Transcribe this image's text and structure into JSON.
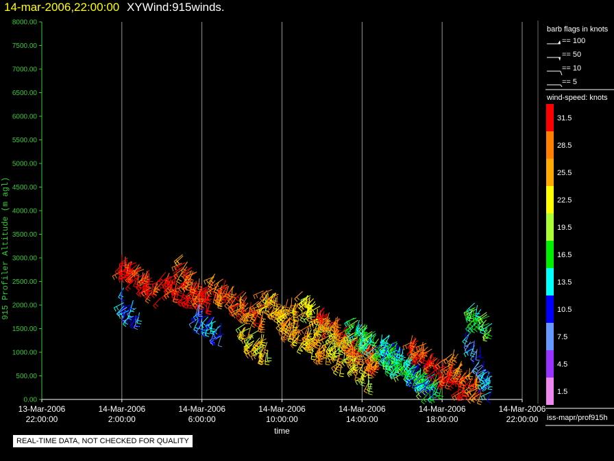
{
  "header": {
    "timestamp": "14-mar-2006,22:00:00",
    "name": "XYWind:915winds."
  },
  "footer": {
    "quality_notice": "REAL-TIME DATA, NOT CHECKED FOR QUALITY"
  },
  "legend": {
    "barb_title": "barb flags in knots",
    "barbs": [
      "== 100",
      "== 50",
      "== 10",
      "== 5"
    ],
    "speed_title": "wind-speed: knots",
    "speed_bins": [
      {
        "label": "31.5",
        "color": "#ff0000"
      },
      {
        "label": "28.5",
        "color": "#ff7f00"
      },
      {
        "label": "25.5",
        "color": "#ffaa00"
      },
      {
        "label": "22.5",
        "color": "#ffff00"
      },
      {
        "label": "19.5",
        "color": "#aaff33"
      },
      {
        "label": "16.5",
        "color": "#00ee00"
      },
      {
        "label": "13.5",
        "color": "#00ffff"
      },
      {
        "label": "10.5",
        "color": "#0000ff"
      },
      {
        "label": "7.5",
        "color": "#6699ff"
      },
      {
        "label": "4.5",
        "color": "#9933ff"
      },
      {
        "label": "1.5",
        "color": "#ee88ee"
      }
    ],
    "source": "iss-mapr/prof915h"
  },
  "colors": {
    "axis": "#33cc33",
    "grid": "#bbbbbb",
    "frame": "#ffffff"
  },
  "chart_data": {
    "type": "scatter",
    "title": "XYWind:915winds.",
    "xlabel": "time",
    "ylabel": "915 Profiler Altitude (m agl)",
    "ylim": [
      0,
      8000
    ],
    "xlim_hours": [
      -2,
      22
    ],
    "yticks": [
      "0.00",
      "500.00",
      "1000.00",
      "1500.00",
      "2000.00",
      "2500.00",
      "3000.00",
      "3500.00",
      "4000.00",
      "4500.00",
      "5000.00",
      "5500.00",
      "6000.00",
      "6500.00",
      "7000.00",
      "7500.00",
      "8000.00"
    ],
    "xticks": [
      {
        "date": "13-Mar-2006",
        "time": "22:00:00",
        "hour": -2
      },
      {
        "date": "14-Mar-2006",
        "time": "2:00:00",
        "hour": 2
      },
      {
        "date": "14-Mar-2006",
        "time": "6:00:00",
        "hour": 6
      },
      {
        "date": "14-Mar-2006",
        "time": "10:00:00",
        "hour": 10
      },
      {
        "date": "14-Mar-2006",
        "time": "14:00:00",
        "hour": 14
      },
      {
        "date": "14-Mar-2006",
        "time": "18:00:00",
        "hour": 18
      },
      {
        "date": "14-Mar-2006",
        "time": "22:00:00",
        "hour": 22
      }
    ],
    "series_groups": [
      {
        "hours": [
          1.8,
          4.0
        ],
        "alt": [
          2950,
          2350
        ],
        "speed": 31.5
      },
      {
        "hours": [
          2.0,
          2.9
        ],
        "alt": [
          2200,
          1700
        ],
        "speed": 10.5
      },
      {
        "hours": [
          4.0,
          6.5
        ],
        "alt": [
          2600,
          2200
        ],
        "speed": 31.5
      },
      {
        "hours": [
          5.0,
          6.0
        ],
        "alt": [
          2900,
          2400
        ],
        "speed": 28.5
      },
      {
        "hours": [
          5.8,
          7.0
        ],
        "alt": [
          1900,
          1400
        ],
        "speed": 10.5
      },
      {
        "hours": [
          6.5,
          9.2
        ],
        "alt": [
          2500,
          1800
        ],
        "speed": 28.5
      },
      {
        "hours": [
          8.0,
          9.3
        ],
        "alt": [
          1500,
          1100
        ],
        "speed": 22.5
      },
      {
        "hours": [
          9.0,
          10.8
        ],
        "alt": [
          2200,
          1900
        ],
        "speed": 25.5
      },
      {
        "hours": [
          10.0,
          13.0
        ],
        "alt": [
          1700,
          900
        ],
        "speed": 25.5
      },
      {
        "hours": [
          11.0,
          14.5
        ],
        "alt": [
          2200,
          500
        ],
        "speed": 22.5
      },
      {
        "hours": [
          12.0,
          15.0
        ],
        "alt": [
          1800,
          800
        ],
        "speed": 28.5
      },
      {
        "hours": [
          13.5,
          17.5
        ],
        "alt": [
          1600,
          300
        ],
        "speed": 16.5
      },
      {
        "hours": [
          15.0,
          18.0
        ],
        "alt": [
          1300,
          200
        ],
        "speed": 13.5
      },
      {
        "hours": [
          16.5,
          19.2
        ],
        "alt": [
          1200,
          300
        ],
        "speed": 31.5
      },
      {
        "hours": [
          18.5,
          20.0
        ],
        "alt": [
          900,
          200
        ],
        "speed": 28.5
      },
      {
        "hours": [
          19.3,
          20.5
        ],
        "alt": [
          1500,
          300
        ],
        "speed": 10.5
      },
      {
        "hours": [
          19.5,
          20.5
        ],
        "alt": [
          1900,
          1600
        ],
        "speed": 16.5
      }
    ]
  }
}
